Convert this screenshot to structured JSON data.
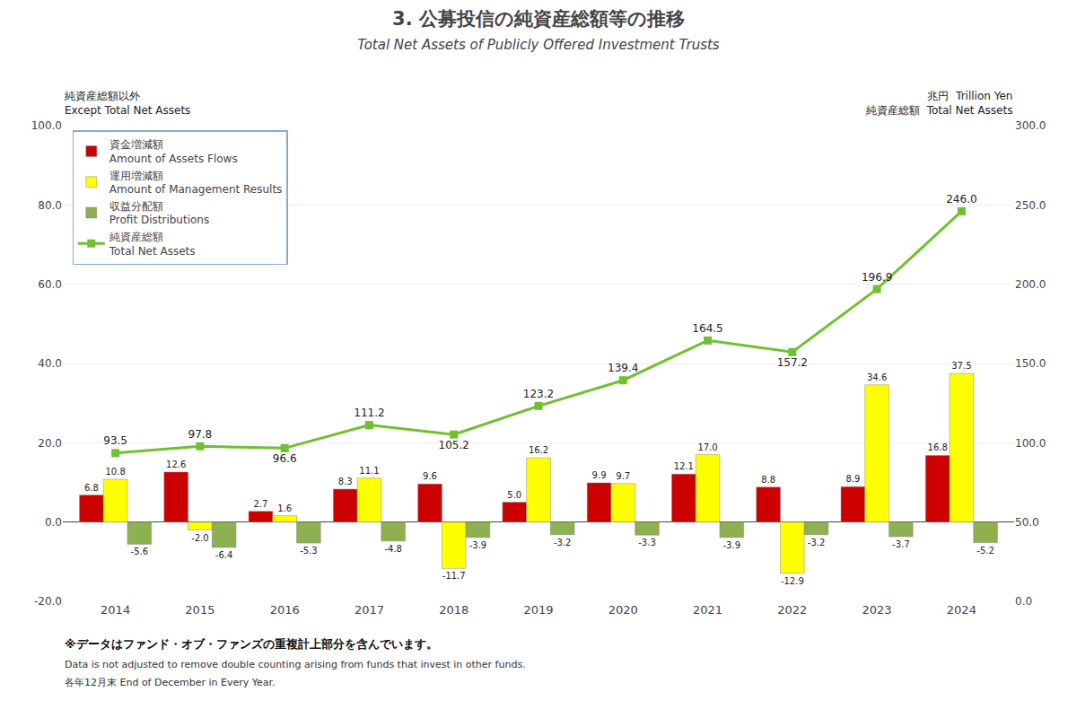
{
  "chart_data": {
    "type": "bar",
    "title": "3. 公募投信の純資産総額等の推移",
    "subtitle": "Total Net Assets of Publicly Offered Investment Trusts",
    "categories": [
      "2014",
      "2015",
      "2016",
      "2017",
      "2018",
      "2019",
      "2020",
      "2021",
      "2022",
      "2023",
      "2024"
    ],
    "ylabel": "純資産総額以外\nExcept Total Net Assets",
    "y2label": "兆円  Trillion Yen\n純資産総額  Total Net Assets",
    "ylim": [
      -20.0,
      100.0
    ],
    "yticks": [
      {
        "value": -20.0,
        "label": "-20.0"
      },
      {
        "value": 0.0,
        "label": "0.0"
      },
      {
        "value": 20.0,
        "label": "20.0"
      },
      {
        "value": 40.0,
        "label": "40.0"
      },
      {
        "value": 60.0,
        "label": "60.0"
      },
      {
        "value": 80.0,
        "label": "80.0"
      },
      {
        "value": 100.0,
        "label": "100.0"
      }
    ],
    "y2lim": [
      0.0,
      300.0
    ],
    "y2ticks": [
      {
        "value": 0.0,
        "label": "0.0"
      },
      {
        "value": 50.0,
        "label": "50.0"
      },
      {
        "value": 100.0,
        "label": "100.0"
      },
      {
        "value": 150.0,
        "label": "150.0"
      },
      {
        "value": 200.0,
        "label": "200.0"
      },
      {
        "value": 250.0,
        "label": "250.0"
      },
      {
        "value": 300.0,
        "label": "300.0"
      }
    ],
    "grid": true,
    "legend": "upper left",
    "data_labels": true,
    "series": [
      {
        "name": "資金増減額\nAmount of Assets Flows",
        "type": "bar",
        "color": "#cc0000",
        "values": [
          6.8,
          12.6,
          2.7,
          8.3,
          9.6,
          5.0,
          9.9,
          12.1,
          8.8,
          8.9,
          16.8
        ],
        "value_labels": [
          "6.8",
          "12.6",
          "2.7",
          "8.3",
          "9.6",
          "5.0",
          "9.9",
          "12.1",
          "8.8",
          "8.9",
          "16.8"
        ]
      },
      {
        "name": "運用増減額\nAmount of Management Results",
        "type": "bar",
        "color": "#ffff00",
        "values": [
          10.8,
          -2.0,
          1.6,
          11.1,
          -11.7,
          16.2,
          9.7,
          17.0,
          -12.9,
          34.6,
          37.5
        ],
        "value_labels": [
          "10.8",
          "-2.0",
          "1.6",
          "11.1",
          "-11.7",
          "16.2",
          "9.7",
          "17.0",
          "-12.9",
          "34.6",
          "37.5"
        ]
      },
      {
        "name": "収益分配額\nProfit Distributions",
        "type": "bar",
        "color": "#8db050",
        "values": [
          -5.6,
          -6.4,
          -5.3,
          -4.8,
          -3.9,
          -3.2,
          -3.3,
          -3.9,
          -3.2,
          -3.7,
          -5.2
        ],
        "value_labels": [
          "-5.6",
          "-6.4",
          "-5.3",
          "-4.8",
          "-3.9",
          "-3.2",
          "-3.3",
          "-3.9",
          "-3.2",
          "-3.7",
          "-5.2"
        ]
      },
      {
        "name": "純資産総額\nTotal Net Assets",
        "type": "line",
        "axis": "y2",
        "color": "#70c030",
        "marker": "square",
        "values": [
          93.5,
          97.8,
          96.6,
          111.2,
          105.2,
          123.2,
          139.4,
          164.5,
          157.2,
          196.9,
          246.0
        ],
        "value_labels": [
          "93.5",
          "97.8",
          "96.6",
          "111.2",
          "105.2",
          "123.2",
          "139.4",
          "164.5",
          "157.2",
          "196.9",
          "246.0"
        ]
      }
    ],
    "annotations": [
      "※データはファンド・オブ・ファンズの重複計上部分を含んでいます。",
      "Data is not adjusted to remove double counting arising from funds that invest in other funds.",
      "各年12月末 End of December in Every Year."
    ]
  }
}
